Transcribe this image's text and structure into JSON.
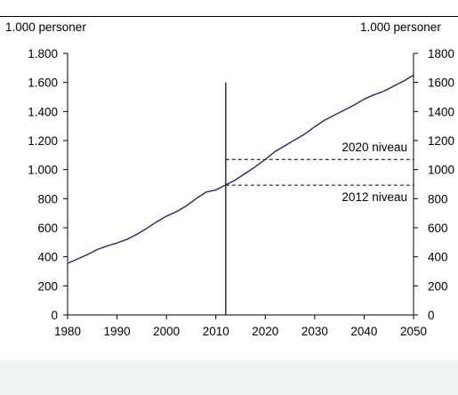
{
  "chart_data": {
    "type": "line",
    "left_unit_label": "1.000 personer",
    "right_unit_label": "1.000 personer",
    "xlim": [
      1980,
      2050
    ],
    "ylim": [
      0,
      1800
    ],
    "x_ticks": [
      1980,
      1990,
      2000,
      2010,
      2020,
      2030,
      2040,
      2050
    ],
    "x_tick_labels": [
      "1980",
      "1990",
      "2000",
      "2010",
      "2020",
      "2030",
      "2040",
      "2050"
    ],
    "y_ticks": [
      0,
      200,
      400,
      600,
      800,
      1000,
      1200,
      1400,
      1600,
      1800
    ],
    "left_y_tick_labels": [
      "0",
      "200",
      "400",
      "600",
      "800",
      "1.000",
      "1.200",
      "1.400",
      "1.600",
      "1.800"
    ],
    "right_y_tick_labels": [
      "0",
      "200",
      "400",
      "600",
      "800",
      "1000",
      "1200",
      "1400",
      "1600",
      "1800"
    ],
    "series": [
      {
        "color": "#1f2a6b",
        "x": [
          1980,
          1982,
          1984,
          1986,
          1988,
          1990,
          1992,
          1994,
          1996,
          1998,
          2000,
          2002,
          2004,
          2006,
          2008,
          2010,
          2012,
          2014,
          2016,
          2018,
          2020,
          2022,
          2024,
          2026,
          2028,
          2030,
          2032,
          2034,
          2036,
          2038,
          2040,
          2042,
          2044,
          2046,
          2048,
          2050
        ],
        "y": [
          355,
          385,
          415,
          450,
          475,
          495,
          520,
          555,
          595,
          640,
          680,
          710,
          750,
          800,
          845,
          860,
          895,
          930,
          975,
          1020,
          1070,
          1125,
          1165,
          1205,
          1245,
          1295,
          1340,
          1375,
          1410,
          1445,
          1485,
          1515,
          1540,
          1575,
          1610,
          1650
        ]
      }
    ],
    "vertical_marker": {
      "x": 2012,
      "y_top": 1600
    },
    "reference_lines": [
      {
        "label": "2020 niveau",
        "y": 1070,
        "x_from": 2012,
        "label_side": "above"
      },
      {
        "label": "2012 niveau",
        "y": 893,
        "x_from": 2012,
        "label_side": "below"
      }
    ],
    "grid": false,
    "line_color": "#1f2a6b",
    "axis_color": "#000000"
  }
}
